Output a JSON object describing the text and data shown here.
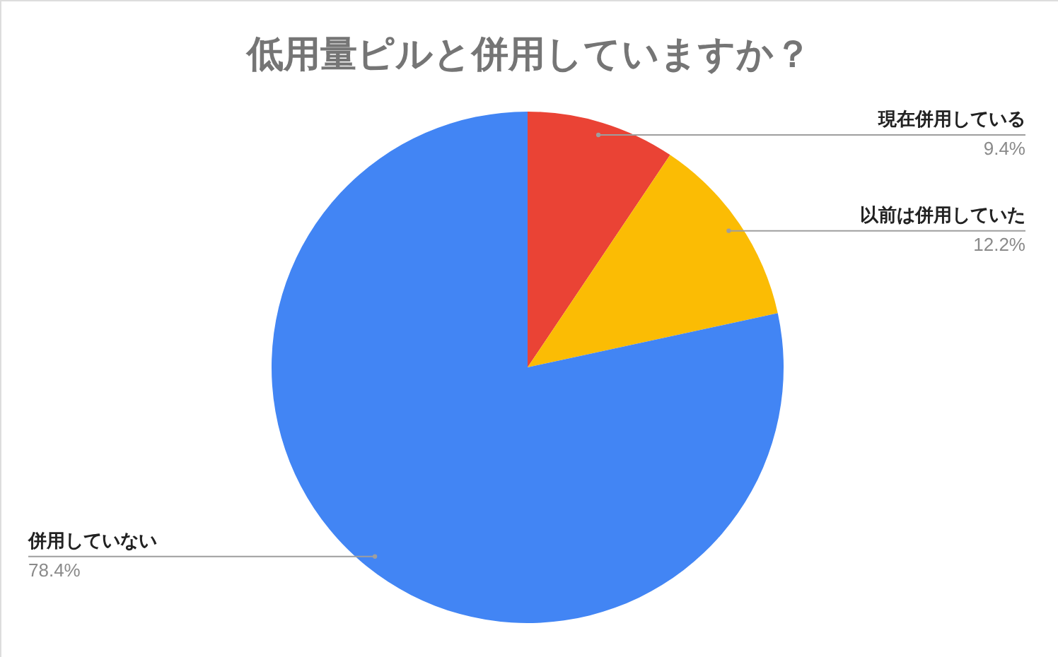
{
  "chart_data": {
    "type": "pie",
    "title": "低用量ピルと併用していますか？",
    "categories": [
      "現在併用している",
      "以前は併用していた",
      "併用していない"
    ],
    "values": [
      9.4,
      12.2,
      78.4
    ],
    "value_labels": [
      "9.4%",
      "12.2%",
      "78.4%"
    ],
    "colors": [
      "#ea4335",
      "#fbbc04",
      "#4285f4"
    ]
  }
}
